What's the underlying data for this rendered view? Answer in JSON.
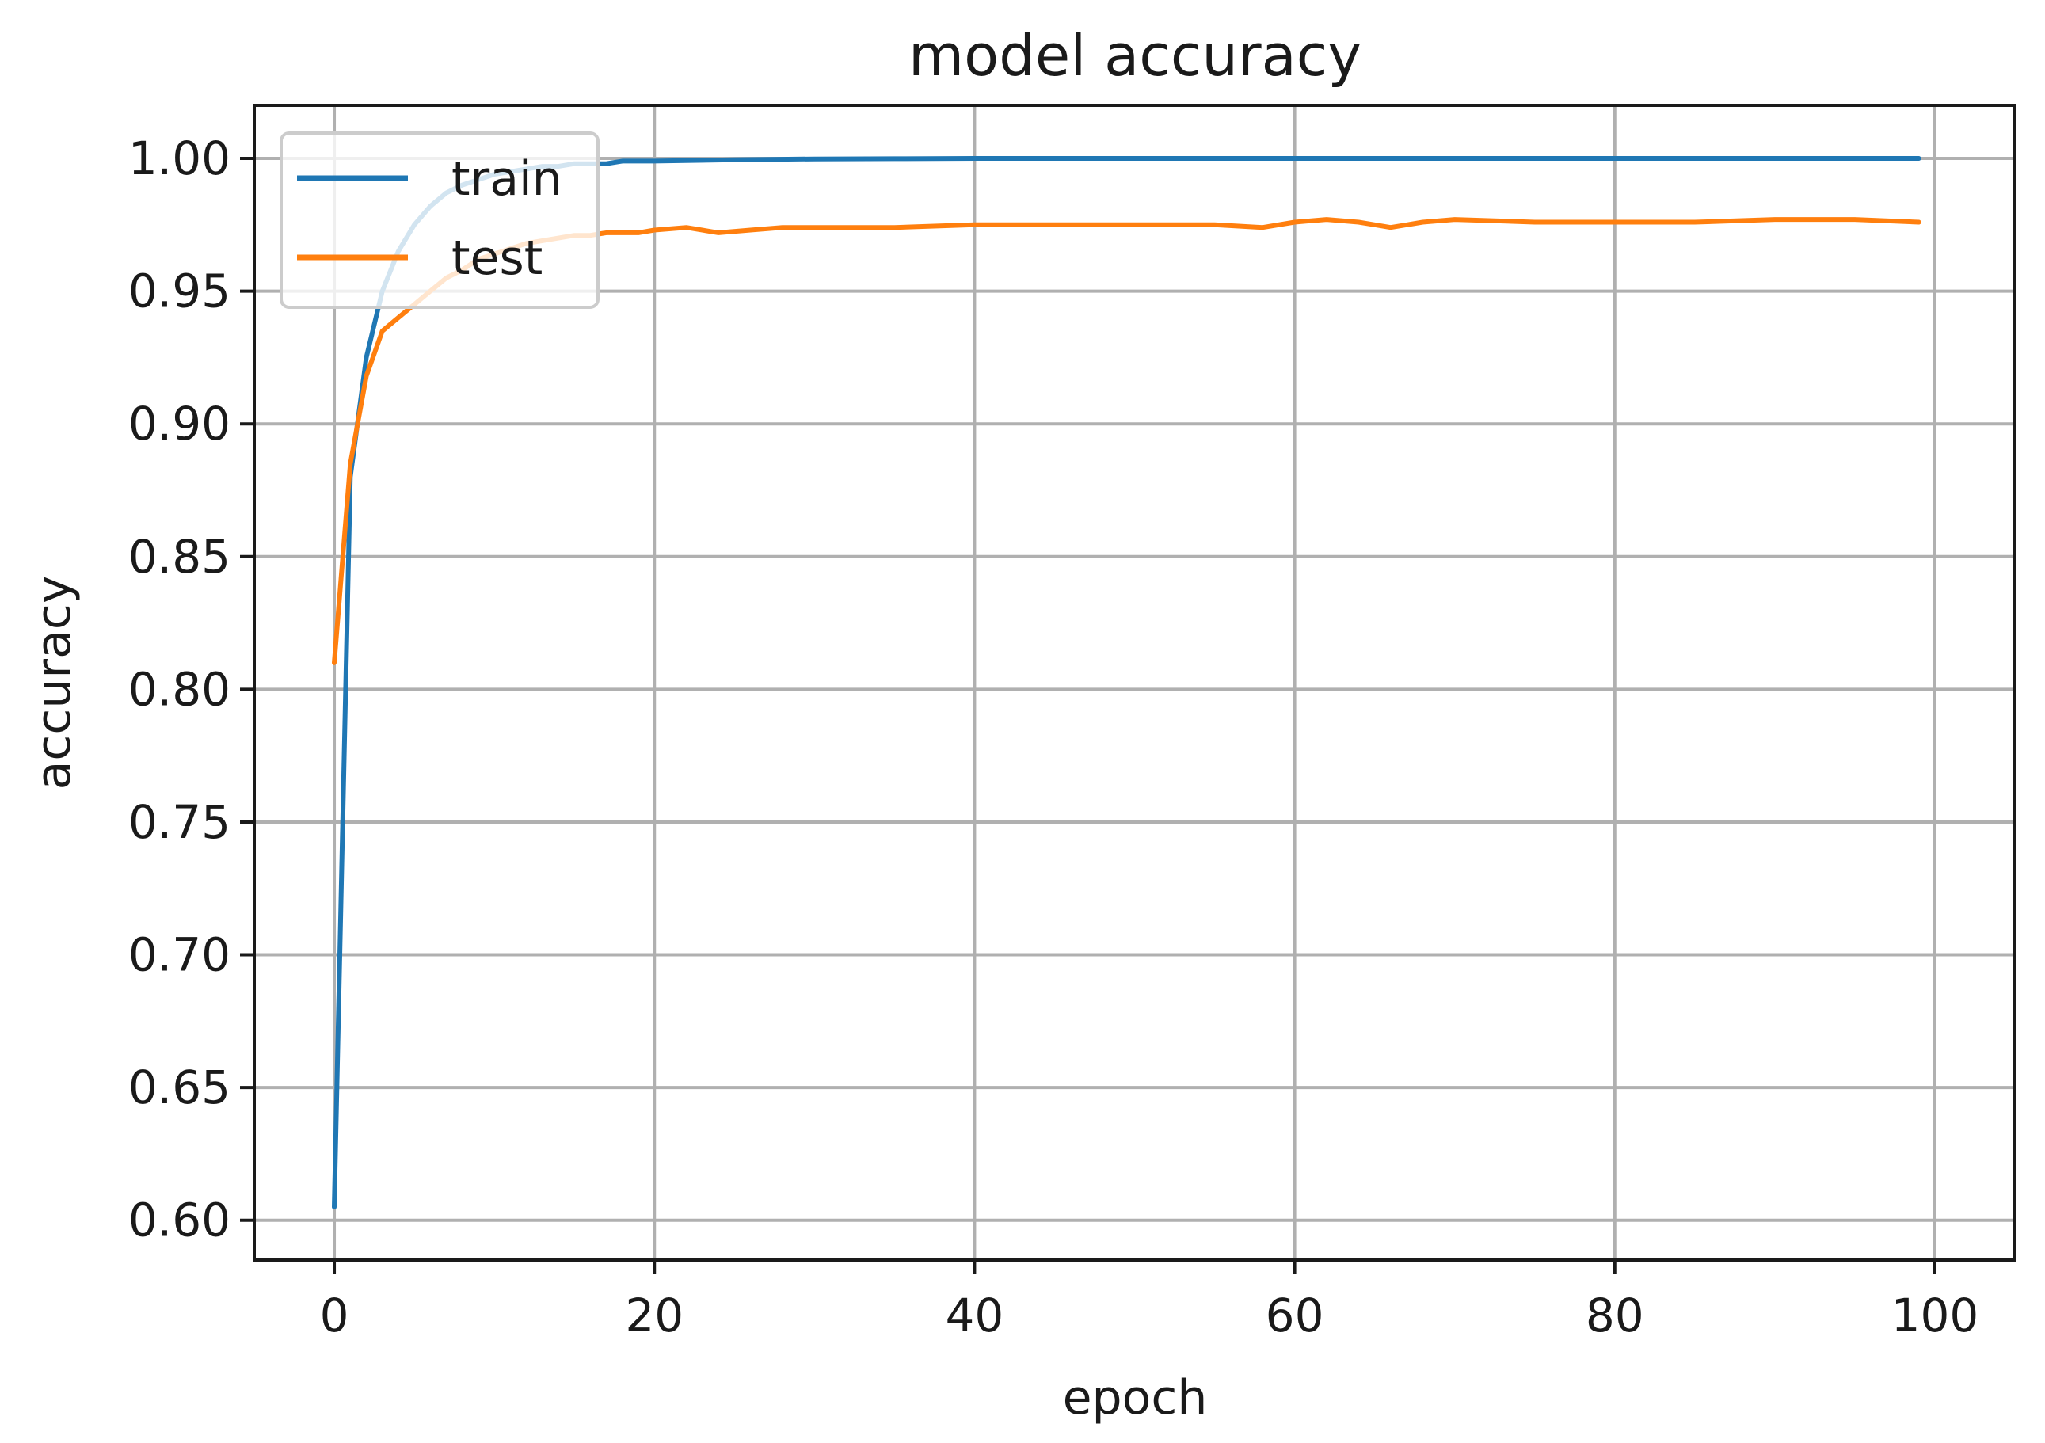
{
  "chart_data": {
    "type": "line",
    "title": "model accuracy",
    "xlabel": "epoch",
    "ylabel": "accuracy",
    "xlim": [
      -5,
      105
    ],
    "ylim": [
      0.585,
      1.02
    ],
    "xticks": [
      0,
      20,
      40,
      60,
      80,
      100
    ],
    "xtick_labels": [
      "0",
      "20",
      "40",
      "60",
      "80",
      "100"
    ],
    "yticks": [
      0.6,
      0.65,
      0.7,
      0.75,
      0.8,
      0.85,
      0.9,
      0.95,
      1.0
    ],
    "ytick_labels": [
      "0.60",
      "0.65",
      "0.70",
      "0.75",
      "0.80",
      "0.85",
      "0.90",
      "0.95",
      "1.00"
    ],
    "grid": true,
    "legend_position": "top-left",
    "series": [
      {
        "name": "train",
        "color": "#1f77b4",
        "x": [
          0,
          1,
          2,
          3,
          4,
          5,
          6,
          7,
          8,
          9,
          10,
          11,
          12,
          13,
          14,
          15,
          16,
          17,
          18,
          19,
          20,
          25,
          30,
          35,
          40,
          45,
          50,
          55,
          60,
          65,
          70,
          75,
          80,
          85,
          90,
          95,
          99
        ],
        "y": [
          0.605,
          0.88,
          0.925,
          0.95,
          0.965,
          0.975,
          0.982,
          0.987,
          0.99,
          0.992,
          0.994,
          0.995,
          0.996,
          0.997,
          0.997,
          0.998,
          0.998,
          0.998,
          0.999,
          0.999,
          0.999,
          0.9995,
          0.9998,
          0.9999,
          1.0,
          1.0,
          1.0,
          1.0,
          1.0,
          1.0,
          1.0,
          1.0,
          1.0,
          1.0,
          1.0,
          1.0,
          1.0
        ]
      },
      {
        "name": "test",
        "color": "#ff7f0e",
        "x": [
          0,
          1,
          2,
          3,
          4,
          5,
          6,
          7,
          8,
          9,
          10,
          11,
          12,
          13,
          14,
          15,
          16,
          17,
          18,
          19,
          20,
          22,
          24,
          26,
          28,
          30,
          35,
          40,
          45,
          50,
          55,
          58,
          60,
          62,
          64,
          65,
          66,
          68,
          70,
          75,
          80,
          85,
          90,
          95,
          99
        ],
        "y": [
          0.81,
          0.885,
          0.918,
          0.935,
          0.94,
          0.945,
          0.95,
          0.955,
          0.958,
          0.962,
          0.964,
          0.966,
          0.968,
          0.969,
          0.97,
          0.971,
          0.971,
          0.972,
          0.972,
          0.972,
          0.973,
          0.974,
          0.972,
          0.973,
          0.974,
          0.974,
          0.974,
          0.975,
          0.975,
          0.975,
          0.975,
          0.974,
          0.976,
          0.977,
          0.976,
          0.975,
          0.974,
          0.976,
          0.977,
          0.976,
          0.976,
          0.976,
          0.977,
          0.977,
          0.976
        ]
      }
    ]
  }
}
